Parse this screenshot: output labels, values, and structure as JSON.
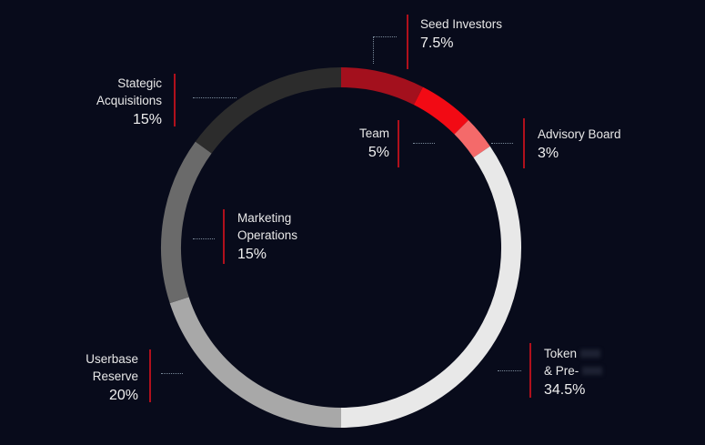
{
  "chart_data": {
    "type": "pie",
    "categories": [
      "Seed Investors",
      "Team",
      "Advisory Board",
      "Token & Pre-",
      "Userbase Reserve",
      "Marketing Operations",
      "Stategic Acquisitions"
    ],
    "values": [
      7.5,
      5,
      3,
      34.5,
      20,
      15,
      15
    ],
    "labels": [
      {
        "name": "Seed Investors",
        "pct": "7.5%"
      },
      {
        "name": "Team",
        "pct": "5%"
      },
      {
        "name": "Advisory Board",
        "pct": "3%"
      },
      {
        "name": "Token\n& Pre-",
        "pct": "34.5%"
      },
      {
        "name": "Userbase\nReserve",
        "pct": "20%"
      },
      {
        "name": "Marketing\nOperations",
        "pct": "15%"
      },
      {
        "name": "Stategic\nAcquisitions",
        "pct": "15%"
      }
    ],
    "colors": [
      "#a3101d",
      "#f20a14",
      "#f46a6a",
      "#e8e8e8",
      "#a8a8a8",
      "#6a6a6a",
      "#2c2c2c"
    ]
  }
}
